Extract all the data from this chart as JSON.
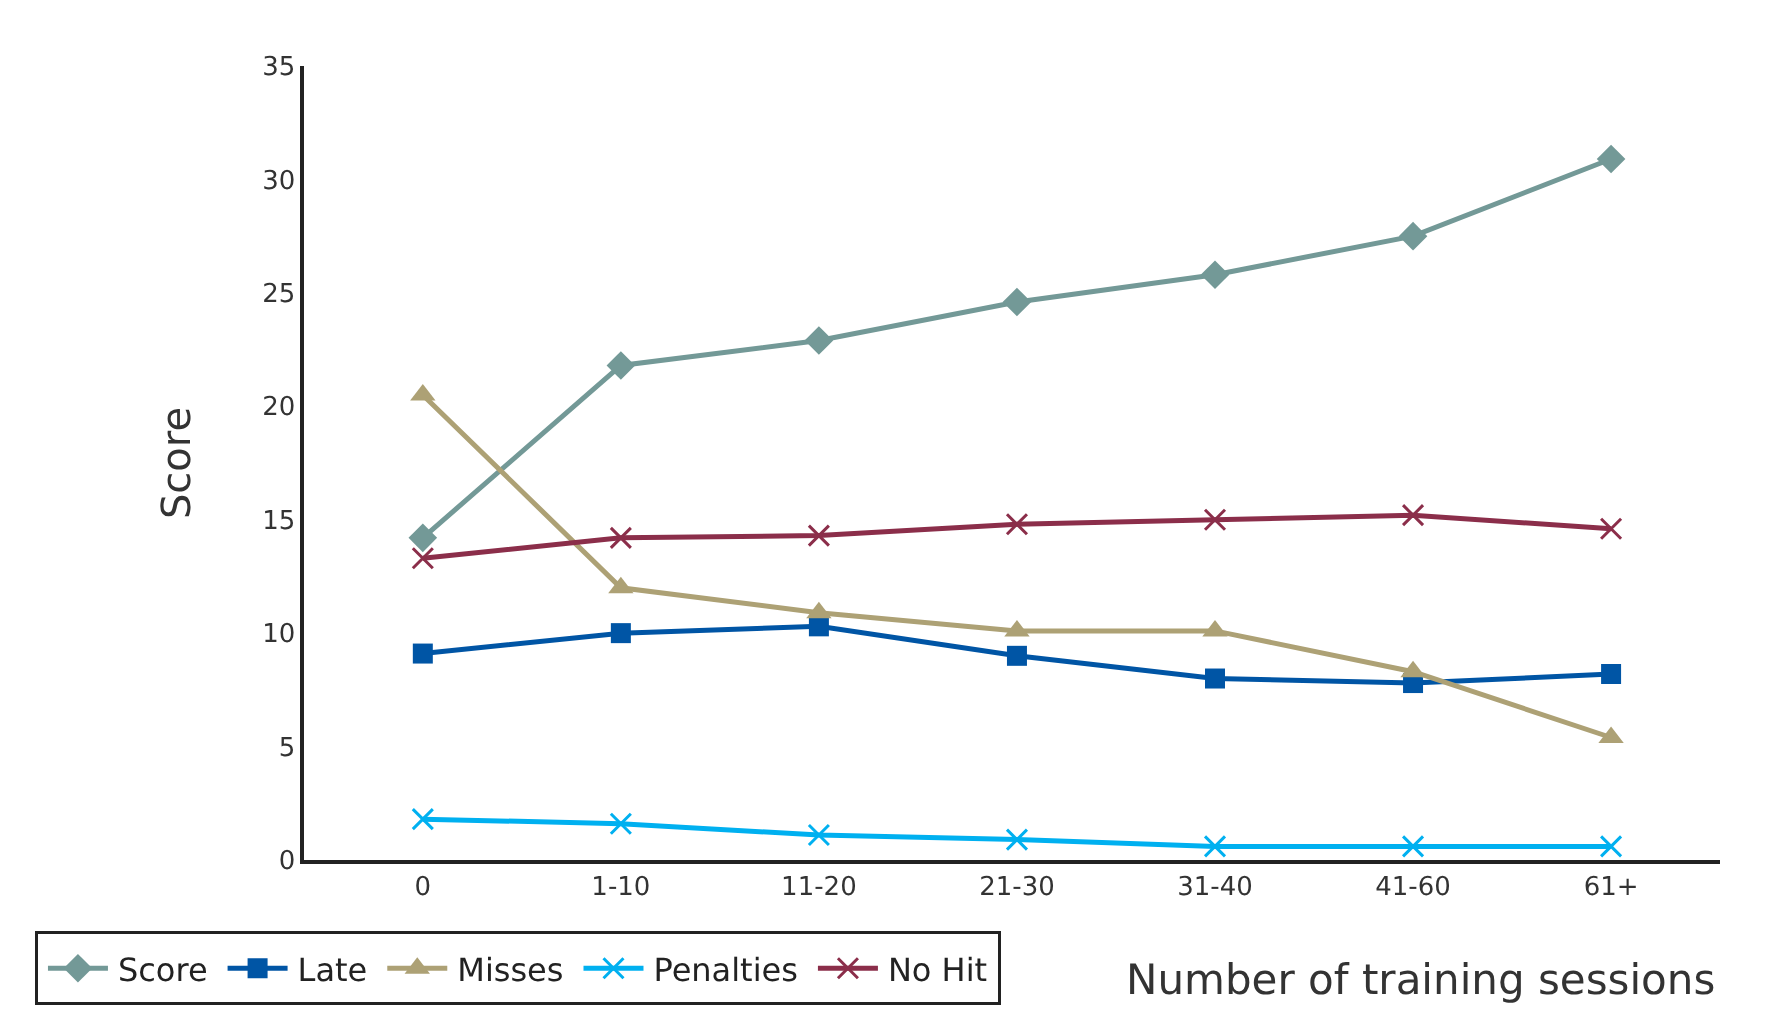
{
  "chart_data": {
    "type": "line",
    "xlabel": "Number of training sessions",
    "ylabel": "Score",
    "categories": [
      "0",
      "1-10",
      "11-20",
      "21-30",
      "31-40",
      "41-60",
      "61+"
    ],
    "series": [
      {
        "name": "Score",
        "color": "#739997",
        "marker": "diamond",
        "values": [
          14.2,
          21.8,
          22.9,
          24.6,
          25.8,
          27.5,
          30.9
        ]
      },
      {
        "name": "Late",
        "color": "#0055a5",
        "marker": "square",
        "values": [
          9.1,
          10.0,
          10.3,
          9.0,
          8.0,
          7.8,
          8.2
        ]
      },
      {
        "name": "Misses",
        "color": "#ada175",
        "marker": "triangle",
        "values": [
          20.5,
          12.0,
          10.9,
          10.1,
          10.1,
          8.3,
          5.4
        ]
      },
      {
        "name": "Penalties",
        "color": "#00b0f0",
        "marker": "cross",
        "values": [
          1.8,
          1.6,
          1.1,
          0.9,
          0.6,
          0.6,
          0.6
        ]
      },
      {
        "name": "No Hit",
        "color": "#8b2e4a",
        "marker": "cross",
        "values": [
          13.3,
          14.2,
          14.3,
          14.8,
          15.0,
          15.2,
          14.6
        ]
      }
    ],
    "ylim": [
      0,
      35
    ],
    "yticks": [
      0,
      5,
      10,
      15,
      20,
      25,
      30,
      35
    ],
    "legend": "bottom left",
    "line_style": "solid"
  }
}
